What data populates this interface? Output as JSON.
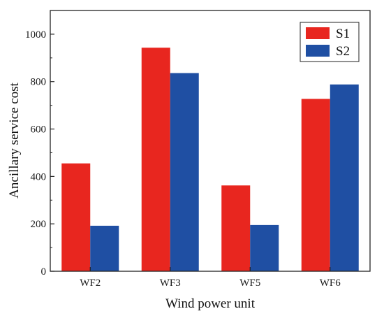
{
  "chart_data": {
    "type": "bar",
    "categories": [
      "WF2",
      "WF3",
      "WF5",
      "WF6"
    ],
    "series": [
      {
        "name": "S1",
        "values": [
          455,
          943,
          362,
          727
        ],
        "color": "#e8261f"
      },
      {
        "name": "S2",
        "values": [
          192,
          836,
          195,
          788
        ],
        "color": "#1f4fa3"
      }
    ],
    "xlabel": "Wind power unit",
    "ylabel": "Ancillary service cost",
    "ylim": [
      0,
      1100
    ],
    "yticks": [
      0,
      200,
      400,
      600,
      800,
      1000
    ],
    "grid": false,
    "legend_position": "top-right"
  }
}
